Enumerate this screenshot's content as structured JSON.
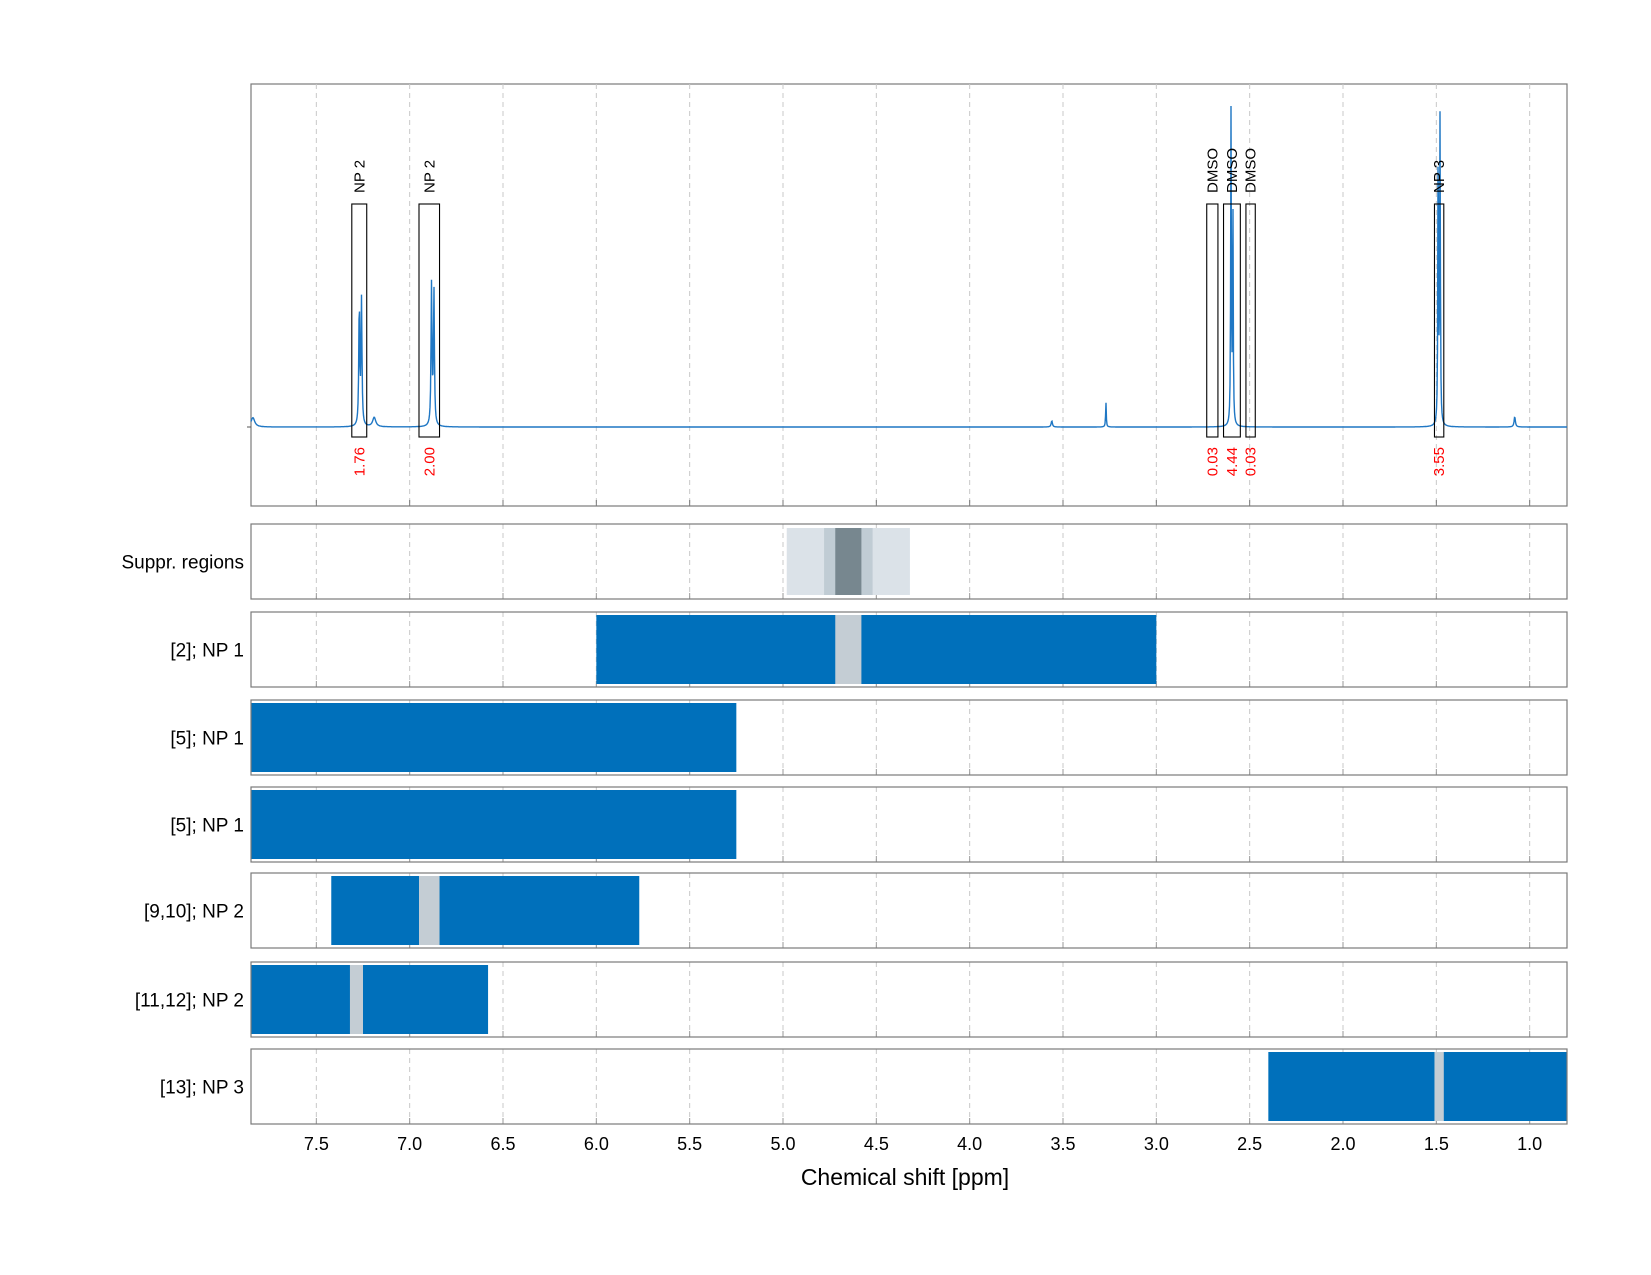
{
  "chart_data": {
    "type": "line",
    "xlabel": "Chemical shift [ppm]",
    "x_axis": {
      "min": 7.85,
      "max": 0.8,
      "reversed": true,
      "ticks": [
        7.5,
        7.0,
        6.5,
        6.0,
        5.5,
        5.0,
        4.5,
        4.0,
        3.5,
        3.0,
        2.5,
        2.0,
        1.5,
        1.0
      ],
      "tick_labels": [
        "7.5",
        "7.0",
        "6.5",
        "6.0",
        "5.5",
        "5.0",
        "4.5",
        "4.0",
        "3.5",
        "3.0",
        "2.5",
        "2.0",
        "1.5",
        "1.0"
      ]
    },
    "grid": true,
    "grid_style": "dashed vertical",
    "colors": {
      "spectrum": "#1f77c4",
      "block": "#0070bb",
      "gap": "#c4cdd4",
      "integral_label": "#ff0000",
      "box": "#000000",
      "suppression": [
        "#dbe2e8",
        "#c0ccd4",
        "#77878f"
      ]
    },
    "spectrum": {
      "series": "NMR spectrum",
      "peaks": [
        {
          "ppm": 7.84,
          "height": 0.018,
          "width": 0.012
        },
        {
          "ppm": 7.27,
          "height": 0.24,
          "width": 0.003
        },
        {
          "ppm": 7.258,
          "height": 0.24,
          "width": 0.003
        },
        {
          "ppm": 7.19,
          "height": 0.018,
          "width": 0.01
        },
        {
          "ppm": 6.883,
          "height": 0.27,
          "width": 0.003
        },
        {
          "ppm": 6.87,
          "height": 0.26,
          "width": 0.003
        },
        {
          "ppm": 3.56,
          "height": 0.012,
          "width": 0.004
        },
        {
          "ppm": 3.27,
          "height": 0.048,
          "width": 0.002
        },
        {
          "ppm": 2.6,
          "height": 0.6,
          "width": 0.002
        },
        {
          "ppm": 2.59,
          "height": 0.45,
          "width": 0.002
        },
        {
          "ppm": 1.49,
          "height": 0.62,
          "width": 0.002
        },
        {
          "ppm": 1.48,
          "height": 0.6,
          "width": 0.002
        },
        {
          "ppm": 1.08,
          "height": 0.02,
          "width": 0.004
        }
      ]
    },
    "annotations": [
      {
        "label": "NP 2",
        "from": 7.31,
        "to": 7.23,
        "integral": "1.76"
      },
      {
        "label": "NP 2",
        "from": 6.95,
        "to": 6.84,
        "integral": "2.00"
      },
      {
        "label": "DMSO",
        "from": 2.73,
        "to": 2.67,
        "integral": "0.03"
      },
      {
        "label": "DMSO",
        "from": 2.64,
        "to": 2.55,
        "integral": "4.44"
      },
      {
        "label": "DMSO",
        "from": 2.52,
        "to": 2.47,
        "integral": "0.03"
      },
      {
        "label": "NP 3",
        "from": 1.51,
        "to": 1.46,
        "integral": "3.55"
      }
    ],
    "tracks": [
      {
        "label": "Suppr. regions",
        "kind": "suppression",
        "bands": [
          {
            "from": 4.98,
            "to": 4.32,
            "level": 0
          },
          {
            "from": 4.78,
            "to": 4.52,
            "level": 1
          },
          {
            "from": 4.72,
            "to": 4.58,
            "level": 2
          }
        ]
      },
      {
        "label": "[2]; NP 1",
        "blocks": [
          {
            "from": 6.0,
            "to": 3.0
          }
        ],
        "gaps": [
          {
            "from": 4.72,
            "to": 4.58
          }
        ]
      },
      {
        "label": "[5]; NP 1",
        "blocks": [
          {
            "from": 7.85,
            "to": 5.25
          }
        ],
        "gaps": []
      },
      {
        "label": "[5]; NP 1",
        "blocks": [
          {
            "from": 7.85,
            "to": 5.25
          }
        ],
        "gaps": []
      },
      {
        "label": "[9,10]; NP 2",
        "blocks": [
          {
            "from": 7.42,
            "to": 5.77
          }
        ],
        "gaps": [
          {
            "from": 6.95,
            "to": 6.84
          }
        ]
      },
      {
        "label": "[11,12]; NP 2",
        "blocks": [
          {
            "from": 7.85,
            "to": 6.58
          }
        ],
        "gaps": [
          {
            "from": 7.32,
            "to": 7.25
          }
        ]
      },
      {
        "label": "[13]; NP 3",
        "blocks": [
          {
            "from": 2.4,
            "to": 0.8
          }
        ],
        "gaps": [
          {
            "from": 1.51,
            "to": 1.46
          }
        ]
      }
    ]
  }
}
